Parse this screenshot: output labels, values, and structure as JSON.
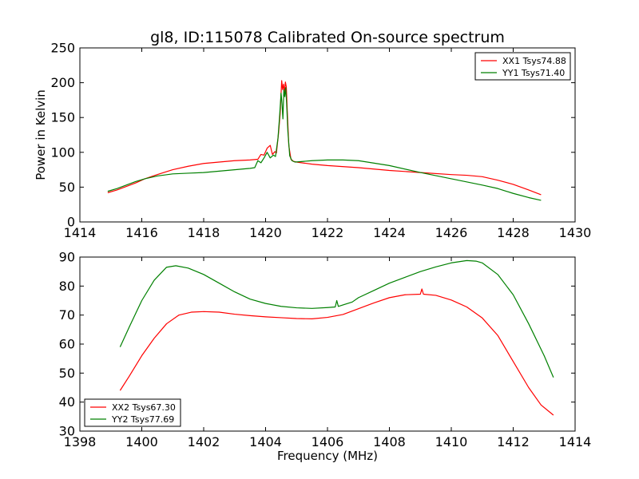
{
  "figure": {
    "title": "gl8, ID:115078 Calibrated On-source spectrum"
  },
  "chart_data": [
    {
      "type": "line",
      "title": "gl8, ID:115078 Calibrated On-source spectrum",
      "xlabel": "",
      "ylabel": "Power in Kelvin",
      "xlim": [
        1414,
        1430
      ],
      "ylim": [
        0,
        250
      ],
      "xticks": [
        1414,
        1416,
        1418,
        1420,
        1422,
        1424,
        1426,
        1428,
        1430
      ],
      "yticks": [
        0,
        50,
        100,
        150,
        200,
        250
      ],
      "grid": false,
      "legend_position": "top-right",
      "series": [
        {
          "name": "XX1 Tsys74.88",
          "color": "#ff0000",
          "x": [
            1414.9,
            1415.2,
            1415.5,
            1415.8,
            1416.1,
            1416.5,
            1417.0,
            1417.5,
            1418.0,
            1418.5,
            1419.0,
            1419.5,
            1419.75,
            1419.85,
            1419.95,
            1420.05,
            1420.15,
            1420.22,
            1420.3,
            1420.35,
            1420.42,
            1420.47,
            1420.52,
            1420.55,
            1420.58,
            1420.61,
            1420.64,
            1420.67,
            1420.7,
            1420.75,
            1420.82,
            1420.9,
            1421.0,
            1421.5,
            1422.0,
            1423.0,
            1424.0,
            1425.0,
            1426.0,
            1426.5,
            1427.0,
            1427.5,
            1428.0,
            1428.5,
            1428.9
          ],
          "y": [
            42,
            46,
            51,
            56,
            62,
            68,
            75,
            80,
            84,
            86,
            88,
            89,
            90,
            97,
            96,
            106,
            110,
            97,
            101,
            99,
            128,
            155,
            203,
            190,
            198,
            185,
            201,
            194,
            160,
            110,
            90,
            87,
            86,
            83,
            81,
            78,
            74,
            71,
            68,
            67,
            65,
            60,
            54,
            46,
            39
          ]
        },
        {
          "name": "YY1 Tsys71.40",
          "color": "#008000",
          "x": [
            1414.9,
            1415.2,
            1415.5,
            1415.8,
            1416.1,
            1416.5,
            1417.0,
            1417.5,
            1418.0,
            1418.5,
            1419.0,
            1419.5,
            1419.65,
            1419.75,
            1419.85,
            1419.95,
            1420.05,
            1420.15,
            1420.25,
            1420.32,
            1420.4,
            1420.45,
            1420.5,
            1420.53,
            1420.56,
            1420.59,
            1420.62,
            1420.65,
            1420.68,
            1420.72,
            1420.78,
            1420.85,
            1420.95,
            1421.5,
            1422.0,
            1422.5,
            1423.0,
            1424.0,
            1425.0,
            1426.0,
            1427.0,
            1427.5,
            1428.0,
            1428.5,
            1428.9
          ],
          "y": [
            44,
            48,
            53,
            58,
            62,
            66,
            69,
            70,
            71,
            73,
            75,
            77,
            78,
            88,
            85,
            92,
            100,
            92,
            96,
            94,
            120,
            150,
            185,
            170,
            148,
            190,
            180,
            193,
            170,
            130,
            95,
            88,
            86,
            88,
            89,
            89,
            88,
            81,
            71,
            62,
            53,
            48,
            41,
            35,
            31
          ]
        }
      ]
    },
    {
      "type": "line",
      "title": "",
      "xlabel": "Frequency (MHz)",
      "ylabel": "",
      "xlim": [
        1398,
        1414
      ],
      "ylim": [
        30,
        90
      ],
      "xticks": [
        1398,
        1400,
        1402,
        1404,
        1406,
        1408,
        1410,
        1412,
        1414
      ],
      "yticks": [
        30,
        40,
        50,
        60,
        70,
        80,
        90
      ],
      "grid": false,
      "legend_position": "bottom-left",
      "series": [
        {
          "name": "XX2 Tsys67.30",
          "color": "#ff0000",
          "x": [
            1399.3,
            1399.6,
            1400.0,
            1400.4,
            1400.8,
            1401.2,
            1401.6,
            1402.0,
            1402.5,
            1403.0,
            1403.5,
            1404.0,
            1404.5,
            1405.0,
            1405.5,
            1406.0,
            1406.5,
            1407.0,
            1407.5,
            1408.0,
            1408.5,
            1409.0,
            1409.05,
            1409.1,
            1409.5,
            1410.0,
            1410.5,
            1411.0,
            1411.5,
            1412.0,
            1412.5,
            1412.9,
            1413.3
          ],
          "y": [
            44,
            49,
            56,
            62,
            67,
            70,
            71,
            71.2,
            71,
            70.3,
            69.8,
            69.4,
            69.1,
            68.8,
            68.7,
            69.2,
            70.2,
            72.2,
            74.2,
            76,
            77,
            77.2,
            79,
            77.2,
            76.8,
            75.2,
            72.8,
            69,
            63,
            54,
            45,
            39,
            35.5
          ]
        },
        {
          "name": "YY2 Tsys77.69",
          "color": "#008000",
          "x": [
            1399.3,
            1399.6,
            1400.0,
            1400.4,
            1400.8,
            1401.1,
            1401.5,
            1402.0,
            1402.5,
            1403.0,
            1403.5,
            1404.0,
            1404.5,
            1405.0,
            1405.5,
            1406.0,
            1406.25,
            1406.3,
            1406.35,
            1406.8,
            1407.0,
            1407.5,
            1408.0,
            1408.5,
            1409.0,
            1409.5,
            1410.0,
            1410.5,
            1410.8,
            1411.0,
            1411.5,
            1412.0,
            1412.5,
            1413.0,
            1413.3
          ],
          "y": [
            59,
            66,
            75,
            82,
            86.5,
            87,
            86.2,
            84,
            81,
            78,
            75.5,
            74,
            73,
            72.5,
            72.3,
            72.6,
            72.8,
            75,
            73,
            74.5,
            76,
            78.5,
            81,
            83,
            85,
            86.6,
            88,
            88.8,
            88.6,
            88,
            84,
            77,
            67,
            56,
            48.5
          ]
        }
      ]
    }
  ]
}
